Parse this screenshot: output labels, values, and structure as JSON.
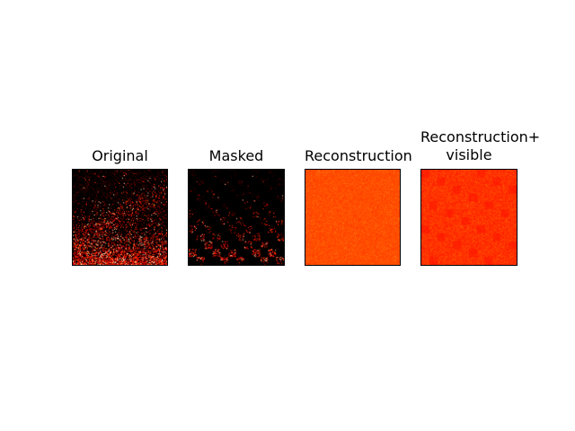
{
  "figure": {
    "panels": [
      {
        "id": "original",
        "title_lines": [
          "Original"
        ],
        "content": "sparse-bright-specks-on-black",
        "palette": [
          "#000000",
          "#3a0000",
          "#c80000",
          "#ff3b00",
          "#ffd0a0"
        ]
      },
      {
        "id": "masked",
        "title_lines": [
          "Masked"
        ],
        "content": "mostly-black-with-few-bright-patches",
        "palette": [
          "#000000",
          "#2a0000",
          "#c00000",
          "#ff3000",
          "#ffc090"
        ]
      },
      {
        "id": "reconstruction",
        "title_lines": [
          "Reconstruction"
        ],
        "content": "uniform-orange-texture",
        "palette": [
          "#ff4a00",
          "#ff5a00",
          "#ff3a00",
          "#ff6a10"
        ]
      },
      {
        "id": "reconstruction-visible",
        "title_lines": [
          "Reconstruction+",
          "visible"
        ],
        "content": "red-orange-texture-with-patches",
        "palette": [
          "#ff2a00",
          "#ff3a00",
          "#ff1a00",
          "#ff5000"
        ]
      }
    ]
  }
}
